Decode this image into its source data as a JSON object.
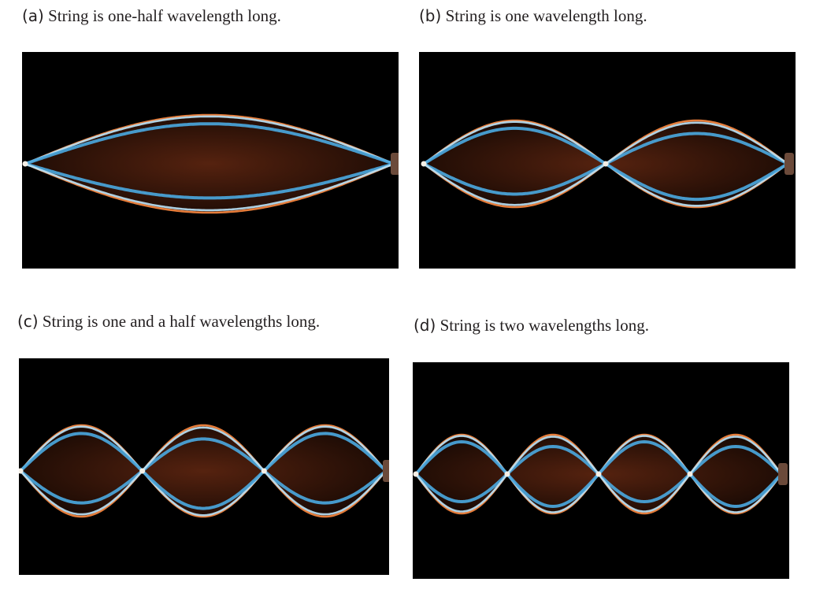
{
  "figure": {
    "panels": [
      {
        "label": "(a)",
        "caption": "String is one-half wavelength long.",
        "loops": 1
      },
      {
        "label": "(b)",
        "caption": "String is one wavelength long.",
        "loops": 2
      },
      {
        "label": "(c)",
        "caption": "String is one and a half wavelengths long.",
        "loops": 3
      },
      {
        "label": "(d)",
        "caption": "String is two wavelengths long.",
        "loops": 4
      }
    ],
    "colors": {
      "background": "#000000",
      "envelope": "#e57c3a",
      "envelope_fill": "#5a2410",
      "string": "#4aa6dc",
      "node": "#f4efe6"
    }
  }
}
